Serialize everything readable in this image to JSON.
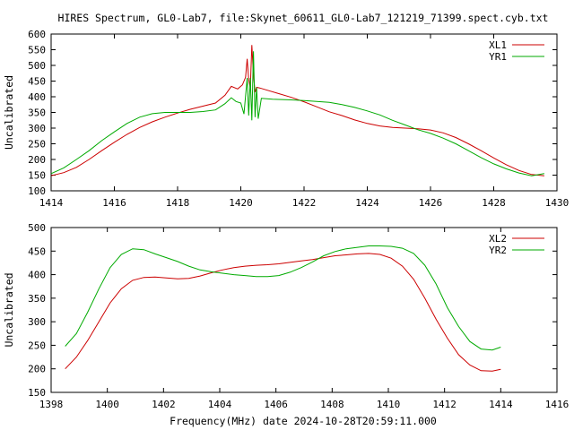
{
  "title": "HIRES Spectrum, GL0-Lab7, file:Skynet_60611_GL0-Lab7_121219_71399.spect.cyb.txt",
  "footer": "Frequency(MHz) date 2024-10-28T20:59:11.000",
  "colors": {
    "red": "#cc0000",
    "green": "#00aa00",
    "axis": "#000000",
    "background": "#ffffff"
  },
  "chart_data": [
    {
      "type": "line",
      "ylabel": "Uncalibrated",
      "xlim": [
        1414,
        1430
      ],
      "ylim": [
        100,
        600
      ],
      "xticks": [
        1414,
        1416,
        1418,
        1420,
        1422,
        1424,
        1426,
        1428,
        1430
      ],
      "yticks": [
        100,
        150,
        200,
        250,
        300,
        350,
        400,
        450,
        500,
        550,
        600
      ],
      "grid": false,
      "legend_position": "top-right",
      "series": [
        {
          "name": "XL1",
          "color": "#cc0000",
          "points": [
            [
              1414.0,
              148
            ],
            [
              1414.4,
              158
            ],
            [
              1414.8,
              175
            ],
            [
              1415.2,
              200
            ],
            [
              1415.6,
              228
            ],
            [
              1416.0,
              255
            ],
            [
              1416.4,
              280
            ],
            [
              1416.8,
              302
            ],
            [
              1417.2,
              320
            ],
            [
              1417.6,
              335
            ],
            [
              1418.0,
              348
            ],
            [
              1418.4,
              360
            ],
            [
              1418.8,
              370
            ],
            [
              1419.2,
              380
            ],
            [
              1419.5,
              405
            ],
            [
              1419.7,
              433
            ],
            [
              1419.9,
              425
            ],
            [
              1420.05,
              438
            ],
            [
              1420.15,
              462
            ],
            [
              1420.2,
              521
            ],
            [
              1420.25,
              455
            ],
            [
              1420.3,
              428
            ],
            [
              1420.35,
              565
            ],
            [
              1420.4,
              470
            ],
            [
              1420.45,
              415
            ],
            [
              1420.5,
              430
            ],
            [
              1420.6,
              428
            ],
            [
              1420.8,
              422
            ],
            [
              1421.2,
              410
            ],
            [
              1421.6,
              398
            ],
            [
              1422.0,
              384
            ],
            [
              1422.4,
              368
            ],
            [
              1422.8,
              352
            ],
            [
              1423.2,
              340
            ],
            [
              1423.6,
              326
            ],
            [
              1424.0,
              315
            ],
            [
              1424.4,
              307
            ],
            [
              1424.8,
              302
            ],
            [
              1425.2,
              300
            ],
            [
              1425.6,
              298
            ],
            [
              1426.0,
              294
            ],
            [
              1426.4,
              285
            ],
            [
              1426.8,
              270
            ],
            [
              1427.2,
              250
            ],
            [
              1427.6,
              228
            ],
            [
              1428.0,
              205
            ],
            [
              1428.4,
              183
            ],
            [
              1428.8,
              165
            ],
            [
              1429.2,
              152
            ],
            [
              1429.6,
              148
            ]
          ]
        },
        {
          "name": "YR1",
          "color": "#00aa00",
          "points": [
            [
              1414.0,
              155
            ],
            [
              1414.4,
              173
            ],
            [
              1414.8,
              200
            ],
            [
              1415.2,
              228
            ],
            [
              1415.6,
              260
            ],
            [
              1416.0,
              288
            ],
            [
              1416.4,
              315
            ],
            [
              1416.8,
              335
            ],
            [
              1417.2,
              346
            ],
            [
              1417.6,
              350
            ],
            [
              1418.0,
              350
            ],
            [
              1418.4,
              350
            ],
            [
              1418.8,
              353
            ],
            [
              1419.2,
              358
            ],
            [
              1419.5,
              378
            ],
            [
              1419.7,
              397
            ],
            [
              1419.85,
              385
            ],
            [
              1420.0,
              380
            ],
            [
              1420.1,
              345
            ],
            [
              1420.2,
              460
            ],
            [
              1420.25,
              340
            ],
            [
              1420.3,
              460
            ],
            [
              1420.35,
              325
            ],
            [
              1420.4,
              545
            ],
            [
              1420.45,
              335
            ],
            [
              1420.5,
              430
            ],
            [
              1420.55,
              330
            ],
            [
              1420.65,
              395
            ],
            [
              1421.0,
              392
            ],
            [
              1421.6,
              390
            ],
            [
              1422.0,
              388
            ],
            [
              1422.4,
              385
            ],
            [
              1422.8,
              382
            ],
            [
              1423.2,
              375
            ],
            [
              1423.6,
              366
            ],
            [
              1424.0,
              355
            ],
            [
              1424.4,
              342
            ],
            [
              1424.8,
              325
            ],
            [
              1425.2,
              310
            ],
            [
              1425.6,
              295
            ],
            [
              1426.0,
              283
            ],
            [
              1426.4,
              268
            ],
            [
              1426.8,
              250
            ],
            [
              1427.2,
              228
            ],
            [
              1427.6,
              206
            ],
            [
              1428.0,
              186
            ],
            [
              1428.4,
              170
            ],
            [
              1428.8,
              157
            ],
            [
              1429.2,
              148
            ],
            [
              1429.6,
              155
            ]
          ]
        }
      ]
    },
    {
      "type": "line",
      "xlabel": "",
      "ylabel": "Uncalibrated",
      "xlim": [
        1398,
        1416
      ],
      "ylim": [
        150,
        500
      ],
      "xticks": [
        1398,
        1400,
        1402,
        1404,
        1406,
        1408,
        1410,
        1412,
        1414,
        1416
      ],
      "yticks": [
        150,
        200,
        250,
        300,
        350,
        400,
        450,
        500
      ],
      "grid": false,
      "legend_position": "top-right",
      "series": [
        {
          "name": "XL2",
          "color": "#cc0000",
          "points": [
            [
              1398.5,
              200
            ],
            [
              1398.9,
              225
            ],
            [
              1399.3,
              260
            ],
            [
              1399.7,
              300
            ],
            [
              1400.1,
              340
            ],
            [
              1400.5,
              370
            ],
            [
              1400.9,
              388
            ],
            [
              1401.3,
              394
            ],
            [
              1401.7,
              395
            ],
            [
              1402.1,
              393
            ],
            [
              1402.5,
              391
            ],
            [
              1402.9,
              392
            ],
            [
              1403.3,
              397
            ],
            [
              1403.7,
              404
            ],
            [
              1404.1,
              410
            ],
            [
              1404.5,
              415
            ],
            [
              1404.9,
              418
            ],
            [
              1405.3,
              420
            ],
            [
              1405.7,
              421
            ],
            [
              1406.1,
              423
            ],
            [
              1406.5,
              426
            ],
            [
              1406.9,
              429
            ],
            [
              1407.3,
              432
            ],
            [
              1407.7,
              436
            ],
            [
              1408.1,
              440
            ],
            [
              1408.5,
              442
            ],
            [
              1408.9,
              444
            ],
            [
              1409.3,
              445
            ],
            [
              1409.7,
              443
            ],
            [
              1410.1,
              435
            ],
            [
              1410.5,
              418
            ],
            [
              1410.9,
              390
            ],
            [
              1411.3,
              350
            ],
            [
              1411.7,
              305
            ],
            [
              1412.1,
              265
            ],
            [
              1412.5,
              230
            ],
            [
              1412.9,
              208
            ],
            [
              1413.3,
              196
            ],
            [
              1413.7,
              195
            ],
            [
              1414.0,
              199
            ]
          ]
        },
        {
          "name": "YR2",
          "color": "#00aa00",
          "points": [
            [
              1398.5,
              248
            ],
            [
              1398.9,
              275
            ],
            [
              1399.3,
              320
            ],
            [
              1399.7,
              370
            ],
            [
              1400.1,
              415
            ],
            [
              1400.5,
              443
            ],
            [
              1400.9,
              455
            ],
            [
              1401.3,
              453
            ],
            [
              1401.7,
              444
            ],
            [
              1402.1,
              436
            ],
            [
              1402.5,
              428
            ],
            [
              1402.9,
              418
            ],
            [
              1403.3,
              410
            ],
            [
              1403.7,
              406
            ],
            [
              1404.1,
              403
            ],
            [
              1404.5,
              400
            ],
            [
              1404.9,
              398
            ],
            [
              1405.3,
              396
            ],
            [
              1405.7,
              396
            ],
            [
              1406.1,
              398
            ],
            [
              1406.5,
              405
            ],
            [
              1406.9,
              415
            ],
            [
              1407.3,
              427
            ],
            [
              1407.7,
              440
            ],
            [
              1408.1,
              449
            ],
            [
              1408.5,
              455
            ],
            [
              1408.9,
              458
            ],
            [
              1409.3,
              461
            ],
            [
              1409.7,
              461
            ],
            [
              1410.1,
              460
            ],
            [
              1410.5,
              456
            ],
            [
              1410.9,
              445
            ],
            [
              1411.3,
              420
            ],
            [
              1411.7,
              380
            ],
            [
              1412.1,
              330
            ],
            [
              1412.5,
              290
            ],
            [
              1412.9,
              258
            ],
            [
              1413.3,
              242
            ],
            [
              1413.7,
              240
            ],
            [
              1414.0,
              246
            ]
          ]
        }
      ]
    }
  ]
}
